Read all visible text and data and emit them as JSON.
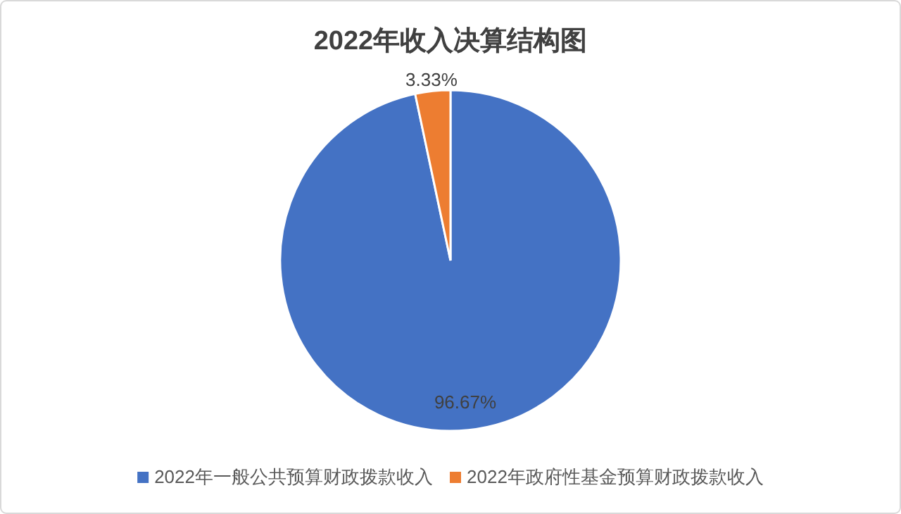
{
  "chart_data": {
    "type": "pie",
    "title": "2022年收入决算结构图",
    "categories": [
      "2022年一般公共预算财政拨款收入",
      "2022年政府性基金预算财政拨款收入"
    ],
    "values": [
      96.67,
      3.33
    ],
    "colors": [
      "#4472c4",
      "#ed7d31"
    ],
    "value_labels": [
      "96.67%",
      "3.33%"
    ],
    "legend": "bottom"
  }
}
